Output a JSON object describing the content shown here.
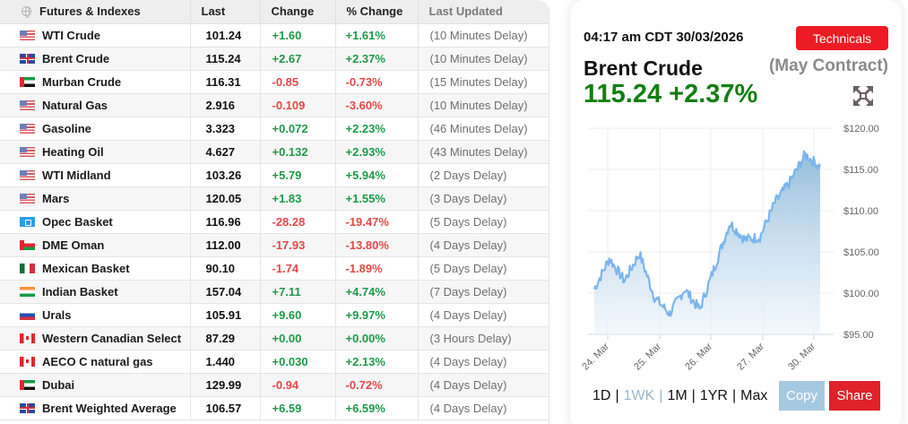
{
  "table": {
    "headers": {
      "name": "Futures & Indexes",
      "last": "Last",
      "change": "Change",
      "pct_change": "% Change",
      "last_updated": "Last Updated"
    },
    "header_icon": "globe-icon",
    "rows": [
      {
        "name": "WTI Crude",
        "flag": "us",
        "last": "101.24",
        "change": "+1.60",
        "pct": "+1.61%",
        "updated": "(10 Minutes Delay)",
        "dir": "pos"
      },
      {
        "name": "Brent Crude",
        "flag": "uk",
        "last": "115.24",
        "change": "+2.67",
        "pct": "+2.37%",
        "updated": "(10 Minutes Delay)",
        "dir": "pos"
      },
      {
        "name": "Murban Crude",
        "flag": "ae",
        "last": "116.31",
        "change": "-0.85",
        "pct": "-0.73%",
        "updated": "(15 Minutes Delay)",
        "dir": "neg"
      },
      {
        "name": "Natural Gas",
        "flag": "us",
        "last": "2.916",
        "change": "-0.109",
        "pct": "-3.60%",
        "updated": "(10 Minutes Delay)",
        "dir": "neg"
      },
      {
        "name": "Gasoline",
        "flag": "us",
        "last": "3.323",
        "change": "+0.072",
        "pct": "+2.23%",
        "updated": "(46 Minutes Delay)",
        "dir": "pos"
      },
      {
        "name": "Heating Oil",
        "flag": "us",
        "last": "4.627",
        "change": "+0.132",
        "pct": "+2.93%",
        "updated": "(43 Minutes Delay)",
        "dir": "pos"
      },
      {
        "name": "WTI Midland",
        "flag": "us",
        "last": "103.26",
        "change": "+5.79",
        "pct": "+5.94%",
        "updated": "(2 Days Delay)",
        "dir": "pos"
      },
      {
        "name": "Mars",
        "flag": "us",
        "last": "120.05",
        "change": "+1.83",
        "pct": "+1.55%",
        "updated": "(3 Days Delay)",
        "dir": "pos"
      },
      {
        "name": "Opec Basket",
        "flag": "opec",
        "last": "116.96",
        "change": "-28.28",
        "pct": "-19.47%",
        "updated": "(5 Days Delay)",
        "dir": "neg"
      },
      {
        "name": "DME Oman",
        "flag": "om",
        "last": "112.00",
        "change": "-17.93",
        "pct": "-13.80%",
        "updated": "(4 Days Delay)",
        "dir": "neg"
      },
      {
        "name": "Mexican Basket",
        "flag": "mx",
        "last": "90.10",
        "change": "-1.74",
        "pct": "-1.89%",
        "updated": "(5 Days Delay)",
        "dir": "neg"
      },
      {
        "name": "Indian Basket",
        "flag": "in",
        "last": "157.04",
        "change": "+7.11",
        "pct": "+4.74%",
        "updated": "(7 Days Delay)",
        "dir": "pos"
      },
      {
        "name": "Urals",
        "flag": "ru",
        "last": "105.91",
        "change": "+9.60",
        "pct": "+9.97%",
        "updated": "(4 Days Delay)",
        "dir": "pos"
      },
      {
        "name": "Western Canadian Select",
        "flag": "ca",
        "last": "87.29",
        "change": "+0.00",
        "pct": "+0.00%",
        "updated": "(3 Hours Delay)",
        "dir": "pos"
      },
      {
        "name": "AECO C natural gas",
        "flag": "ca",
        "last": "1.440",
        "change": "+0.030",
        "pct": "+2.13%",
        "updated": "(4 Days Delay)",
        "dir": "pos"
      },
      {
        "name": "Dubai",
        "flag": "ae",
        "last": "129.99",
        "change": "-0.94",
        "pct": "-0.72%",
        "updated": "(4 Days Delay)",
        "dir": "neg"
      },
      {
        "name": "Brent Weighted Average",
        "flag": "uk",
        "last": "106.57",
        "change": "+6.59",
        "pct": "+6.59%",
        "updated": "(4 Days Delay)",
        "dir": "pos"
      }
    ]
  },
  "detail": {
    "timestamp": "04:17 am CDT 30/03/2026",
    "technicals_label": "Technicals",
    "title": "Brent Crude",
    "contract": "(May Contract)",
    "price_line": "115.24 +2.37%",
    "expand_icon": "expand-arrows-icon",
    "ranges": [
      "1D",
      "1WK",
      "1M",
      "1YR",
      "Max"
    ],
    "active_range": "1WK",
    "copy_label": "Copy",
    "share_label": "Share"
  },
  "colors": {
    "positive": "#1e9a4a",
    "negative": "#e54848",
    "price_green": "#118011",
    "technicals_red": "#ed1c24",
    "share_red": "#e0222a",
    "copy_blue": "#a6c9e2",
    "chart_line": "#7cb5ec"
  },
  "chart_data": {
    "type": "area",
    "title": "Brent Crude (May Contract)",
    "xlabel": "",
    "ylabel": "",
    "x_tick_labels": [
      "24. Mar",
      "25. Mar",
      "26. Mar",
      "27. Mar",
      "30. Mar"
    ],
    "y_tick_labels": [
      "$120.00",
      "$115.00",
      "$110.00",
      "$105.00",
      "$100.00",
      "$95.00"
    ],
    "ylim": [
      95,
      120
    ],
    "grid": true,
    "legend": "none",
    "series": [
      {
        "name": "Brent Crude",
        "x": [
          "23 Mar late",
          "24 Mar",
          "24 Mar mid",
          "24 Mar late",
          "25 Mar early",
          "25 Mar",
          "25 Mar mid",
          "25 Mar late",
          "26 Mar",
          "26 Mar mid",
          "26 Mar late",
          "27 Mar",
          "27 Mar mid",
          "27 Mar late",
          "30 Mar",
          "30 Mar close"
        ],
        "values": [
          100.5,
          104.2,
          101.5,
          104.8,
          99.5,
          97.5,
          100.5,
          98.0,
          103.2,
          108.5,
          106.5,
          106.8,
          111.0,
          113.5,
          116.8,
          115.3
        ]
      }
    ]
  }
}
